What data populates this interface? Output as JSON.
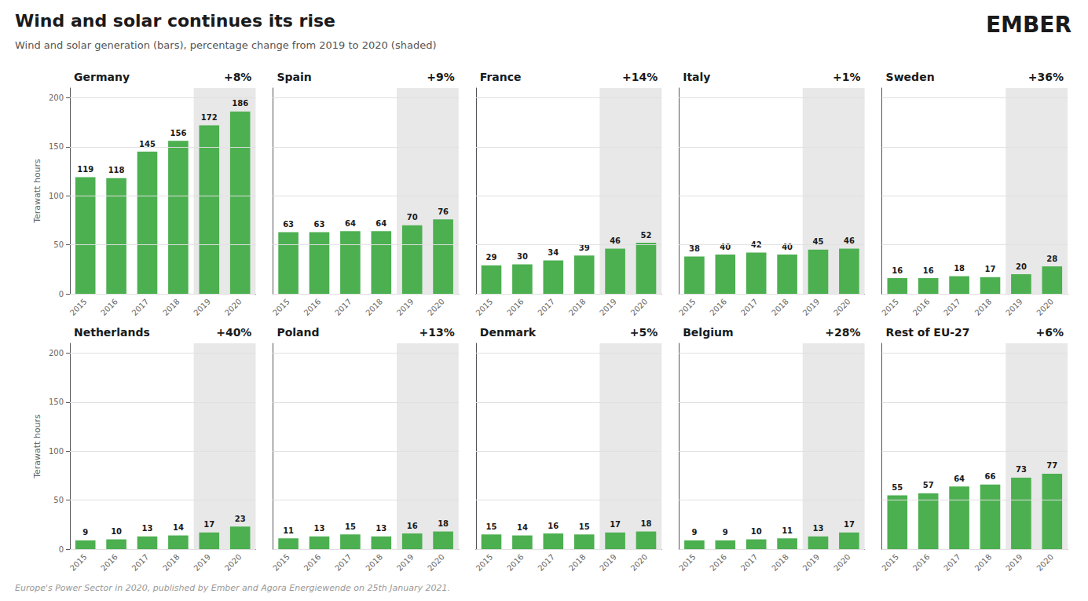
{
  "title": "Wind and solar continues its rise",
  "subtitle": "Wind and solar generation (bars), percentage change from 2019 to 2020 (shaded)",
  "annotations": [
    "EMBER",
    "Europe's Power Sector in 2020, published by Ember and Agora Energiewende on 25th January 2021."
  ],
  "chart_data": [
    {
      "type": "bar",
      "title": "Germany",
      "categories": [
        "2015",
        "2016",
        "2017",
        "2018",
        "2019",
        "2020"
      ],
      "values": [
        119,
        118,
        145,
        156,
        172,
        186
      ],
      "color": "#4caf50",
      "annotations": [
        "+8%"
      ],
      "highlight": [
        "2019",
        "2020"
      ],
      "ylabel": "Terawatt hours",
      "ylim": [
        0,
        210
      ],
      "yticks": [
        0,
        50,
        100,
        150,
        200
      ],
      "grid": true,
      "data_labels": true
    },
    {
      "type": "bar",
      "title": "Spain",
      "categories": [
        "2015",
        "2016",
        "2017",
        "2018",
        "2019",
        "2020"
      ],
      "values": [
        63,
        63,
        64,
        64,
        70,
        76
      ],
      "color": "#4caf50",
      "annotations": [
        "+9%"
      ],
      "highlight": [
        "2019",
        "2020"
      ],
      "ylim": [
        0,
        210
      ],
      "yticks": [
        0,
        50,
        100,
        150,
        200
      ],
      "grid": true,
      "data_labels": true,
      "tick_labels": "x"
    },
    {
      "type": "bar",
      "title": "France",
      "categories": [
        "2015",
        "2016",
        "2017",
        "2018",
        "2019",
        "2020"
      ],
      "values": [
        29,
        30,
        34,
        39,
        46,
        52
      ],
      "color": "#4caf50",
      "annotations": [
        "+14%"
      ],
      "highlight": [
        "2019",
        "2020"
      ],
      "ylim": [
        0,
        210
      ],
      "yticks": [
        0,
        50,
        100,
        150,
        200
      ],
      "grid": true,
      "data_labels": true,
      "tick_labels": "x"
    },
    {
      "type": "bar",
      "title": "Italy",
      "categories": [
        "2015",
        "2016",
        "2017",
        "2018",
        "2019",
        "2020"
      ],
      "values": [
        38,
        40,
        42,
        40,
        45,
        46
      ],
      "color": "#4caf50",
      "annotations": [
        "+1%"
      ],
      "highlight": [
        "2019",
        "2020"
      ],
      "ylim": [
        0,
        210
      ],
      "yticks": [
        0,
        50,
        100,
        150,
        200
      ],
      "grid": true,
      "data_labels": true,
      "tick_labels": "x"
    },
    {
      "type": "bar",
      "title": "Sweden",
      "categories": [
        "2015",
        "2016",
        "2017",
        "2018",
        "2019",
        "2020"
      ],
      "values": [
        16,
        16,
        18,
        17,
        20,
        28
      ],
      "color": "#4caf50",
      "annotations": [
        "+36%"
      ],
      "highlight": [
        "2019",
        "2020"
      ],
      "ylim": [
        0,
        210
      ],
      "yticks": [
        0,
        50,
        100,
        150,
        200
      ],
      "grid": true,
      "data_labels": true,
      "tick_labels": "x"
    },
    {
      "type": "bar",
      "title": "Netherlands",
      "categories": [
        "2015",
        "2016",
        "2017",
        "2018",
        "2019",
        "2020"
      ],
      "values": [
        9,
        10,
        13,
        14,
        17,
        23
      ],
      "color": "#4caf50",
      "annotations": [
        "+40%"
      ],
      "highlight": [
        "2019",
        "2020"
      ],
      "ylabel": "Terawatt hours",
      "ylim": [
        0,
        210
      ],
      "yticks": [
        0,
        50,
        100,
        150,
        200
      ],
      "grid": true,
      "data_labels": true
    },
    {
      "type": "bar",
      "title": "Poland",
      "categories": [
        "2015",
        "2016",
        "2017",
        "2018",
        "2019",
        "2020"
      ],
      "values": [
        11,
        13,
        15,
        13,
        16,
        18
      ],
      "color": "#4caf50",
      "annotations": [
        "+13%"
      ],
      "highlight": [
        "2019",
        "2020"
      ],
      "ylim": [
        0,
        210
      ],
      "yticks": [
        0,
        50,
        100,
        150,
        200
      ],
      "grid": true,
      "data_labels": true,
      "tick_labels": "x"
    },
    {
      "type": "bar",
      "title": "Denmark",
      "categories": [
        "2015",
        "2016",
        "2017",
        "2018",
        "2019",
        "2020"
      ],
      "values": [
        15,
        14,
        16,
        15,
        17,
        18
      ],
      "color": "#4caf50",
      "annotations": [
        "+5%"
      ],
      "highlight": [
        "2019",
        "2020"
      ],
      "ylim": [
        0,
        210
      ],
      "yticks": [
        0,
        50,
        100,
        150,
        200
      ],
      "grid": true,
      "data_labels": true,
      "tick_labels": "x"
    },
    {
      "type": "bar",
      "title": "Belgium",
      "categories": [
        "2015",
        "2016",
        "2017",
        "2018",
        "2019",
        "2020"
      ],
      "values": [
        9,
        9,
        10,
        11,
        13,
        17
      ],
      "color": "#4caf50",
      "annotations": [
        "+28%"
      ],
      "highlight": [
        "2019",
        "2020"
      ],
      "ylim": [
        0,
        210
      ],
      "yticks": [
        0,
        50,
        100,
        150,
        200
      ],
      "grid": true,
      "data_labels": true,
      "tick_labels": "x"
    },
    {
      "type": "bar",
      "title": "Rest of EU-27",
      "categories": [
        "2015",
        "2016",
        "2017",
        "2018",
        "2019",
        "2020"
      ],
      "values": [
        55,
        57,
        64,
        66,
        73,
        77
      ],
      "color": "#4caf50",
      "annotations": [
        "+6%"
      ],
      "highlight": [
        "2019",
        "2020"
      ],
      "ylim": [
        0,
        210
      ],
      "yticks": [
        0,
        50,
        100,
        150,
        200
      ],
      "grid": true,
      "data_labels": true,
      "tick_labels": "x"
    }
  ]
}
